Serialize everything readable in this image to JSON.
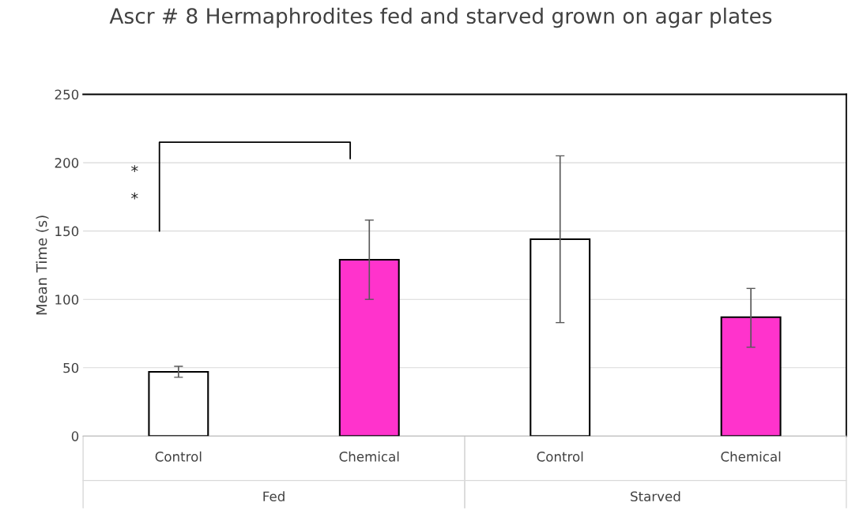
{
  "chart_data": {
    "type": "bar",
    "title": "Ascr # 8 Hermaphrodites fed and starved grown on agar plates",
    "ylabel": "Mean Time (s)",
    "categories": [
      "Control",
      "Chemical",
      "Control",
      "Chemical"
    ],
    "values": [
      47,
      129,
      144,
      87
    ],
    "colors": [
      "#ffffff",
      "#ff33cc",
      "#ffffff",
      "#ff33cc"
    ],
    "errors": [
      [
        43,
        51
      ],
      [
        100,
        158
      ],
      [
        83,
        205
      ],
      [
        65,
        108
      ]
    ],
    "ylim": [
      0,
      250
    ],
    "yticks": [
      0,
      50,
      100,
      150,
      200,
      250
    ],
    "grid": "y",
    "annotations": [
      "*",
      "*",
      "Fed",
      "Starved"
    ]
  }
}
